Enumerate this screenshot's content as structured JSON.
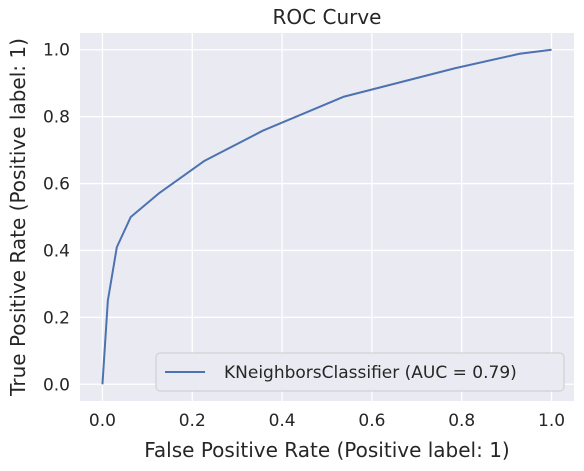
{
  "chart_data": {
    "type": "line",
    "title": "ROC Curve",
    "xlabel": "False Positive Rate (Positive label: 1)",
    "ylabel": "True Positive Rate (Positive label: 1)",
    "xlim": [
      -0.05,
      1.05
    ],
    "ylim": [
      -0.05,
      1.05
    ],
    "xticks": [
      0.0,
      0.2,
      0.4,
      0.6,
      0.8,
      1.0
    ],
    "yticks": [
      0.0,
      0.2,
      0.4,
      0.6,
      0.8,
      1.0
    ],
    "xtick_labels": [
      "0.0",
      "0.2",
      "0.4",
      "0.6",
      "0.8",
      "1.0"
    ],
    "ytick_labels": [
      "0.0",
      "0.2",
      "0.4",
      "0.6",
      "0.8",
      "1.0"
    ],
    "grid": true,
    "legend_position": "lower-right",
    "series": [
      {
        "name": "KNeighborsClassifier (AUC = 0.79)",
        "color": "#4c72b0",
        "x": [
          0.0,
          0.012,
          0.032,
          0.063,
          0.125,
          0.226,
          0.357,
          0.536,
          0.786,
          0.929,
          1.0
        ],
        "y": [
          0.0,
          0.25,
          0.41,
          0.5,
          0.57,
          0.667,
          0.758,
          0.859,
          0.945,
          0.988,
          1.0
        ]
      }
    ]
  }
}
